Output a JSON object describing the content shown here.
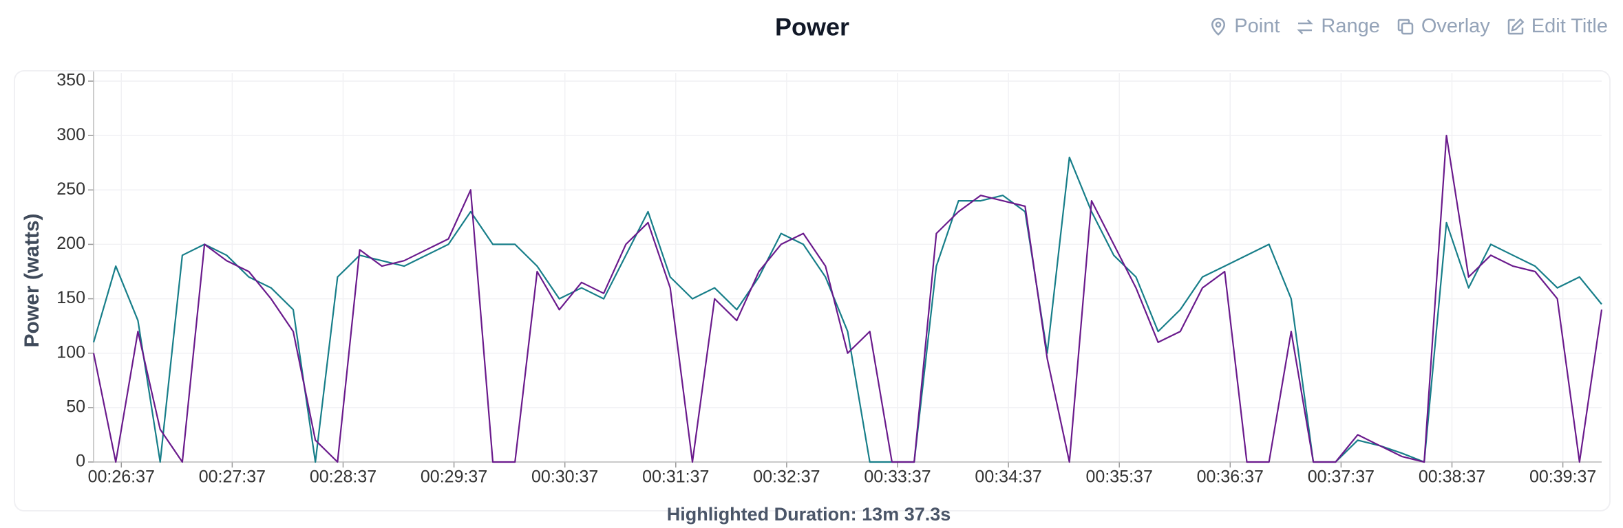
{
  "chart_data": {
    "type": "line",
    "title": "Power",
    "ylabel": "Power (watts)",
    "footer": "Highlighted Duration: 13m 37.3s",
    "buttons": [
      "Point",
      "Range",
      "Overlay",
      "Edit Title"
    ],
    "x": [
      "00:26:22",
      "00:26:34",
      "00:26:46",
      "00:26:58",
      "00:27:10",
      "00:27:22",
      "00:27:34",
      "00:27:46",
      "00:27:58",
      "00:28:10",
      "00:28:22",
      "00:28:34",
      "00:28:46",
      "00:28:58",
      "00:29:10",
      "00:29:22",
      "00:29:34",
      "00:29:46",
      "00:29:58",
      "00:30:10",
      "00:30:22",
      "00:30:34",
      "00:30:46",
      "00:30:58",
      "00:31:10",
      "00:31:22",
      "00:31:34",
      "00:31:46",
      "00:31:58",
      "00:32:10",
      "00:32:22",
      "00:32:34",
      "00:32:46",
      "00:32:58",
      "00:33:10",
      "00:33:22",
      "00:33:34",
      "00:33:46",
      "00:33:58",
      "00:34:10",
      "00:34:22",
      "00:34:34",
      "00:34:46",
      "00:34:58",
      "00:35:10",
      "00:35:22",
      "00:35:34",
      "00:35:46",
      "00:35:58",
      "00:36:10",
      "00:36:22",
      "00:36:34",
      "00:36:46",
      "00:36:58",
      "00:37:10",
      "00:37:22",
      "00:37:34",
      "00:37:46",
      "00:37:58",
      "00:38:10",
      "00:38:22",
      "00:38:34",
      "00:38:46",
      "00:38:58",
      "00:39:10",
      "00:39:22",
      "00:39:34",
      "00:39:46",
      "00:39:58"
    ],
    "series": [
      {
        "color": "#177e89",
        "values": [
          110,
          180,
          130,
          0,
          190,
          200,
          190,
          170,
          160,
          140,
          0,
          170,
          190,
          185,
          180,
          190,
          200,
          230,
          200,
          200,
          180,
          150,
          160,
          150,
          190,
          230,
          170,
          150,
          160,
          140,
          170,
          210,
          200,
          170,
          120,
          0,
          0,
          0,
          180,
          240,
          240,
          245,
          230,
          100,
          280,
          230,
          190,
          170,
          120,
          140,
          170,
          180,
          190,
          200,
          150,
          0,
          0,
          20,
          15,
          8,
          0,
          220,
          160,
          200,
          190,
          180,
          160,
          170,
          145
        ]
      },
      {
        "color": "#6a1a8c",
        "values": [
          100,
          0,
          120,
          30,
          0,
          200,
          185,
          175,
          150,
          120,
          20,
          0,
          195,
          180,
          185,
          195,
          205,
          250,
          0,
          0,
          175,
          140,
          165,
          155,
          200,
          220,
          160,
          0,
          150,
          130,
          175,
          200,
          210,
          180,
          100,
          120,
          0,
          0,
          210,
          230,
          245,
          240,
          235,
          95,
          0,
          240,
          200,
          160,
          110,
          120,
          160,
          175,
          0,
          0,
          120,
          0,
          0,
          25,
          15,
          5,
          0,
          300,
          170,
          190,
          180,
          175,
          150,
          0,
          140
        ]
      }
    ],
    "xlim": [
      "00:26:22",
      "00:39:58"
    ],
    "xticks": [
      "00:26:37",
      "00:27:37",
      "00:28:37",
      "00:29:37",
      "00:30:37",
      "00:31:37",
      "00:32:37",
      "00:33:37",
      "00:34:37",
      "00:35:37",
      "00:36:37",
      "00:37:37",
      "00:38:37",
      "00:39:37"
    ],
    "ylim": [
      0,
      350
    ],
    "yticks": [
      0,
      50,
      100,
      150,
      200,
      250,
      300,
      350
    ],
    "grid": true
  }
}
